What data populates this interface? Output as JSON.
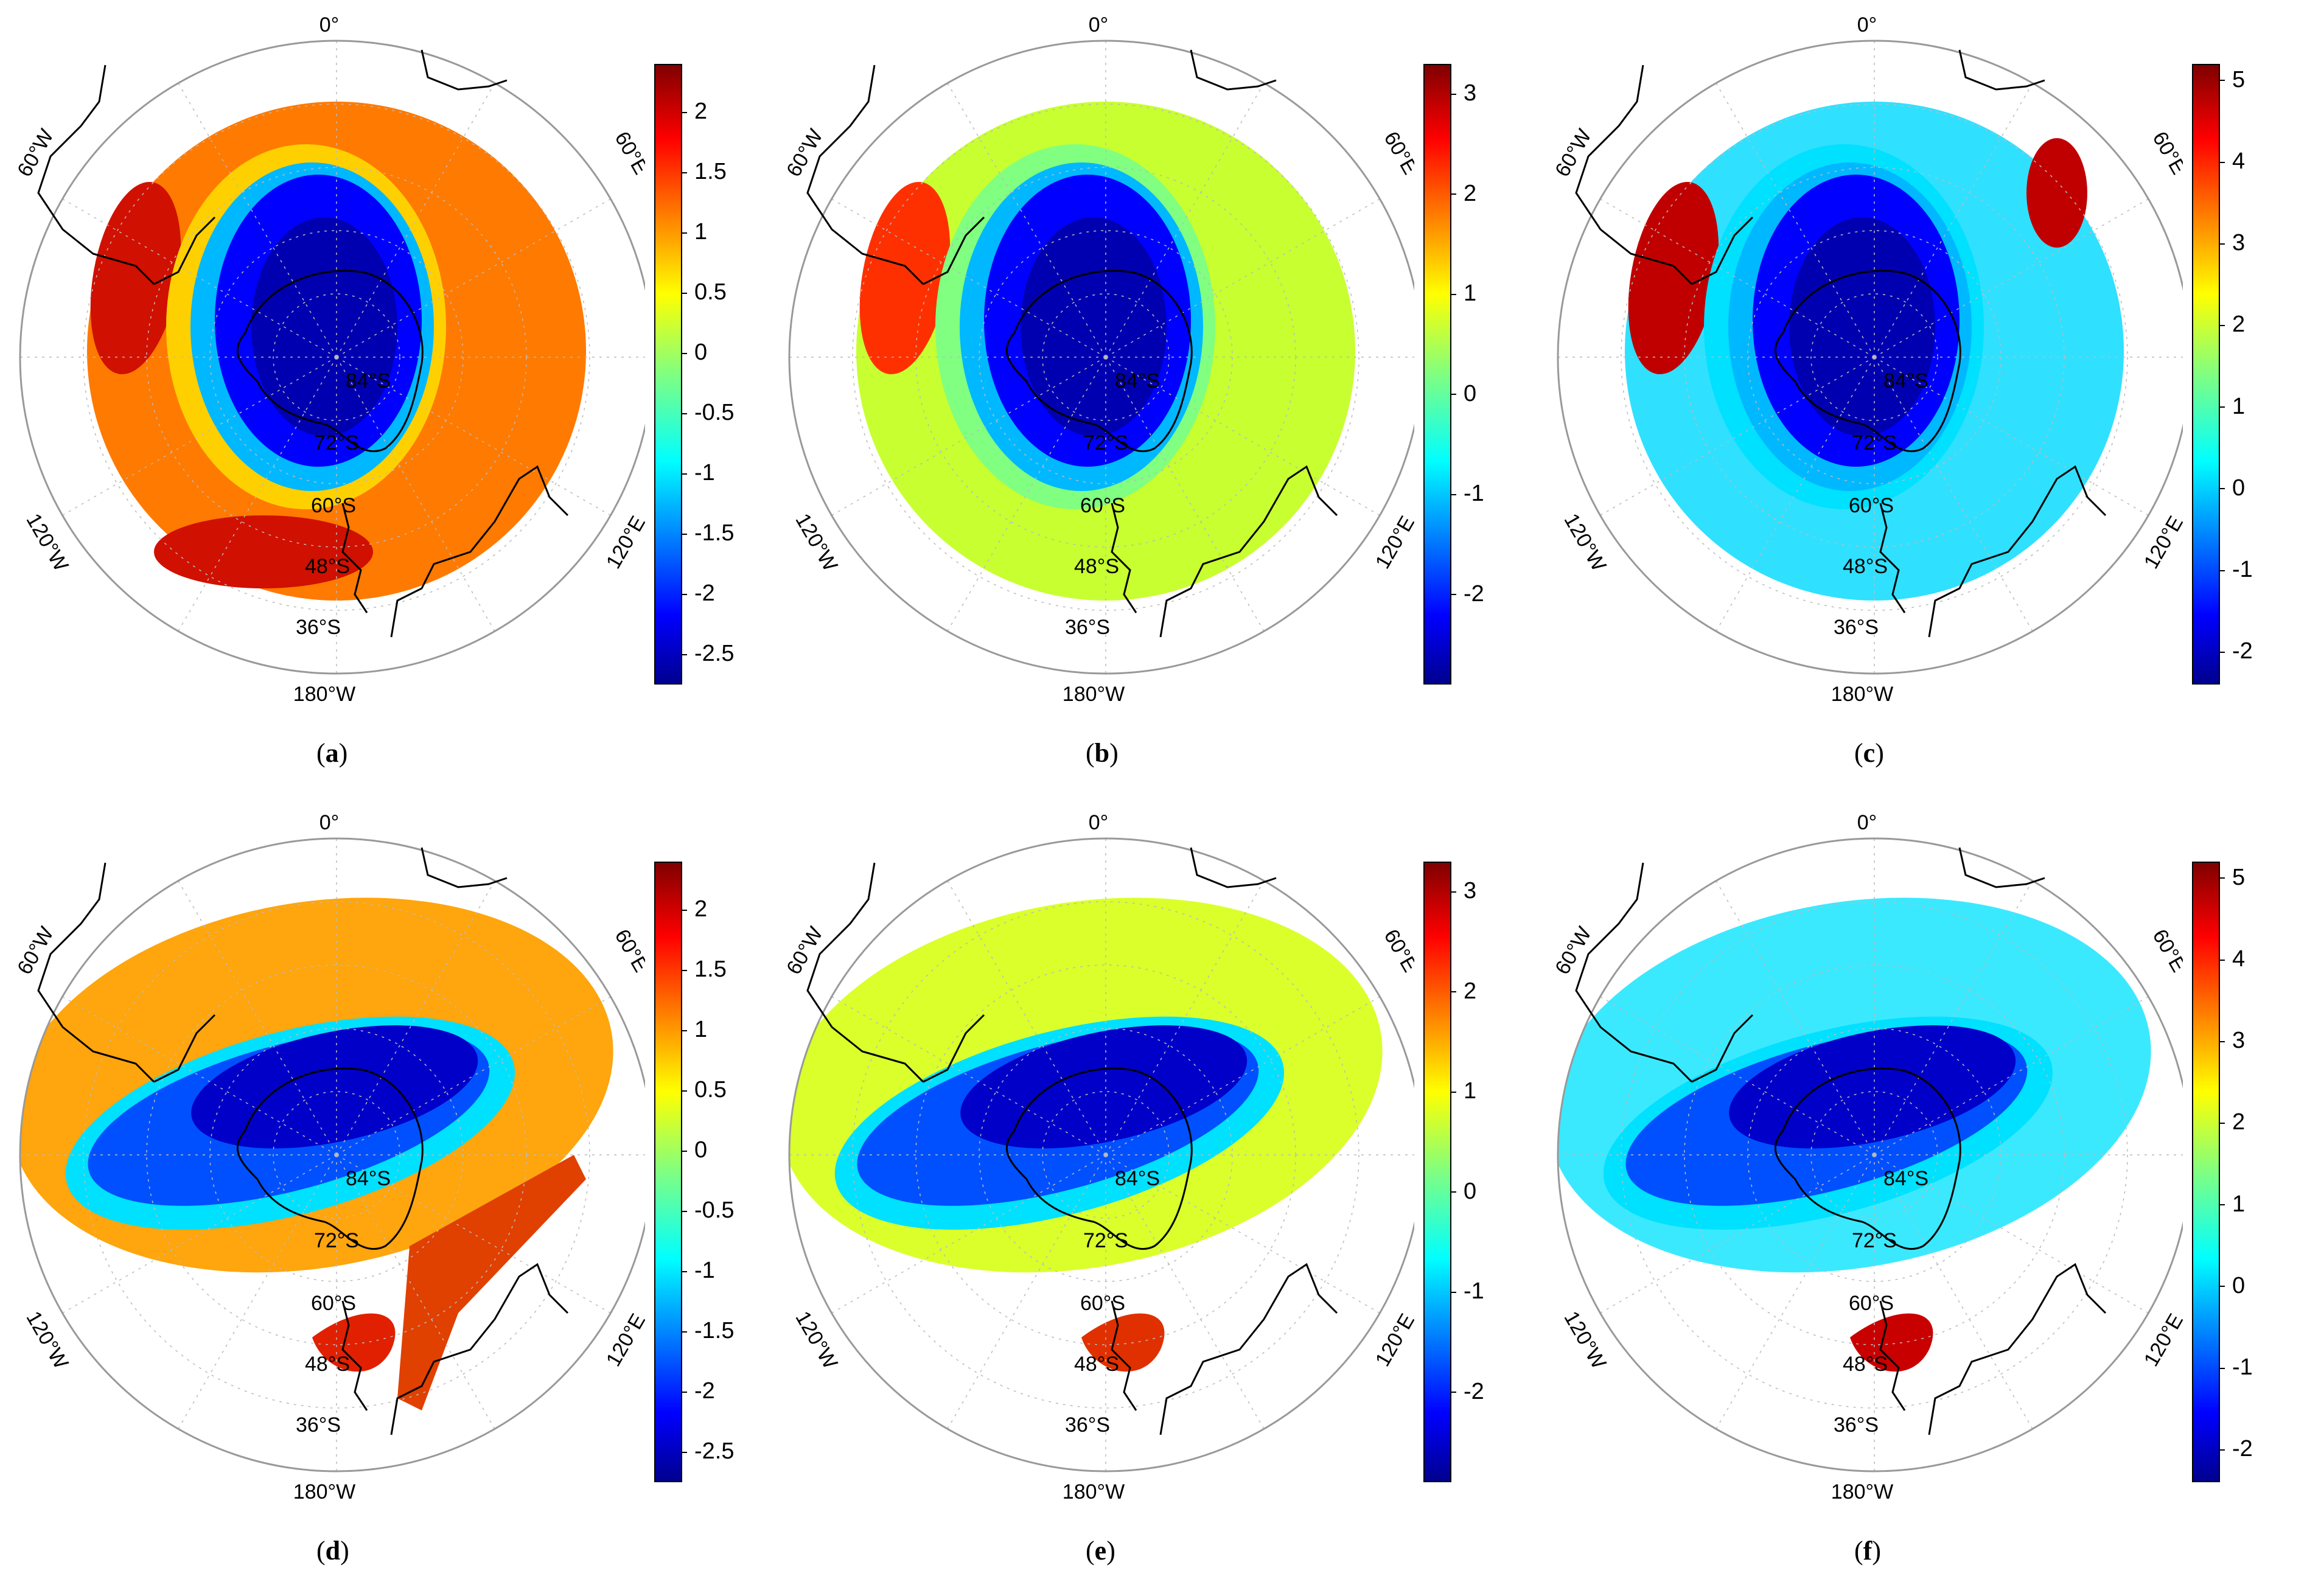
{
  "colors": {
    "jet_low": "#00008f",
    "jet_mid": "#00ffff",
    "jet_yellow": "#ffff00",
    "jet_high": "#800000",
    "coast": "#000000",
    "grid": "#bbbbbb"
  },
  "map_labels": {
    "top": "0°",
    "left": "60°W",
    "right": "60°E",
    "lower_left": "120°W",
    "lower_right": "120°E",
    "bottom": "180°W",
    "lat_84": "84°S",
    "lat_72": "72°S",
    "lat_60": "60°S",
    "lat_48": "48°S",
    "lat_36": "36°S"
  },
  "panels": [
    {
      "id": "a",
      "caption_open": "(",
      "caption_letter": "a",
      "caption_close": ")",
      "colorbar": [
        "2",
        "1.5",
        "1",
        "0.5",
        "0",
        "-0.5",
        "-1",
        "-1.5",
        "-2",
        "-2.5"
      ],
      "range": [
        -2.75,
        2.4
      ]
    },
    {
      "id": "b",
      "caption_open": "(",
      "caption_letter": "b",
      "caption_close": ")",
      "colorbar": [
        "3",
        "2",
        "1",
        "0",
        "-1",
        "-2"
      ],
      "range": [
        -2.9,
        3.3
      ]
    },
    {
      "id": "c",
      "caption_open": "(",
      "caption_letter": "c",
      "caption_close": ")",
      "colorbar": [
        "5",
        "4",
        "3",
        "2",
        "1",
        "0",
        "-1",
        "-2"
      ],
      "range": [
        -2.4,
        5.2
      ]
    },
    {
      "id": "d",
      "caption_open": "(",
      "caption_letter": "d",
      "caption_close": ")",
      "colorbar": [
        "2",
        "1.5",
        "1",
        "0.5",
        "0",
        "-0.5",
        "-1",
        "-1.5",
        "-2",
        "-2.5"
      ],
      "range": [
        -2.75,
        2.4
      ]
    },
    {
      "id": "e",
      "caption_open": "(",
      "caption_letter": "e",
      "caption_close": ")",
      "colorbar": [
        "3",
        "2",
        "1",
        "0",
        "-1",
        "-2"
      ],
      "range": [
        -2.9,
        3.3
      ]
    },
    {
      "id": "f",
      "caption_open": "(",
      "caption_letter": "f",
      "caption_close": ")",
      "colorbar": [
        "5",
        "4",
        "3",
        "2",
        "1",
        "0",
        "-1",
        "-2"
      ],
      "range": [
        -2.4,
        5.2
      ]
    }
  ]
}
